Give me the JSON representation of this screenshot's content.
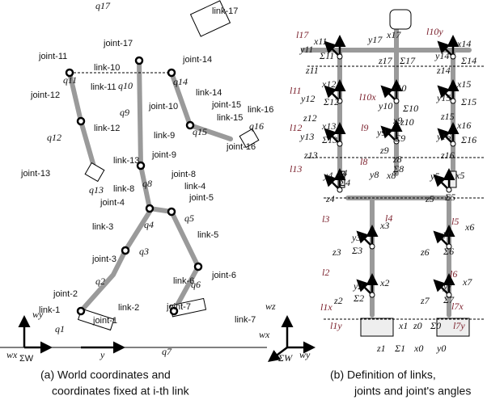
{
  "panel_a": {
    "labels": [
      "link-17",
      "q17",
      "joint-17",
      "joint-11",
      "joint-14",
      "link-10",
      "q11",
      "q14",
      "joint-12",
      "link-11",
      "q10",
      "joint-10",
      "link-14",
      "joint-15",
      "link-16",
      "link-15",
      "q9",
      "link-12",
      "q15",
      "q16",
      "link-9",
      "q12",
      "joint-16",
      "joint-9",
      "link-13",
      "joint-13",
      "joint-8",
      "q13",
      "link-8",
      "link-4",
      "joint-4",
      "joint-5",
      "q8",
      "q4",
      "q5",
      "link-3",
      "link-5",
      "q3",
      "joint-3",
      "joint-6",
      "q2",
      "link-6",
      "q6",
      "joint-2",
      "link-2",
      "joint-7",
      "link-1",
      "joint-1",
      "link-7",
      "q1",
      "q7",
      "y",
      "ΣW",
      "wy",
      "wx"
    ],
    "caption": [
      "(a) World coordinates and",
      "coordinates fixed at i-th link"
    ]
  },
  "panel_b": {
    "labels": [
      "l17",
      "x17",
      "y17",
      "l10y",
      "x11",
      "y11",
      "Σ11",
      "z11",
      "z17",
      "Σ17",
      "x14",
      "y14",
      "Σ14",
      "z14",
      "l11",
      "l10x",
      "x12",
      "y12",
      "Σ12",
      "z12",
      "x10",
      "y10",
      "Σ10",
      "z10",
      "x15",
      "y15",
      "Σ15",
      "z15",
      "l12",
      "l9",
      "x13",
      "y13",
      "Σ13",
      "z13",
      "x9",
      "y9",
      "Σ9",
      "z9",
      "x16",
      "y16",
      "Σ16",
      "z16",
      "l13",
      "l8",
      "z8",
      "Σ8",
      "x8",
      "y8",
      "x4",
      "y4",
      "Σ4",
      "z4",
      "x5",
      "y5",
      "Σ5",
      "z5",
      "l4",
      "l3",
      "x3",
      "y3",
      "Σ3",
      "z3",
      "l5",
      "x6",
      "y6",
      "Σ6",
      "z6",
      "l2",
      "x2",
      "y2",
      "Σ2",
      "z2",
      "l6",
      "x7",
      "y7",
      "Σ7",
      "z7",
      "l1x",
      "l7x",
      "l1y",
      "l7y",
      "x1",
      "z0",
      "Σ0",
      "z1",
      "Σ1",
      "x0",
      "y0",
      "ΣW",
      "wz",
      "wx",
      "wy"
    ],
    "caption": [
      "(b) Definition of links,",
      "joints and joint's angles"
    ]
  }
}
